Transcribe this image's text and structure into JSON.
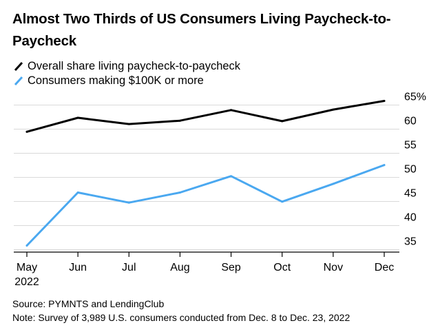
{
  "chart_data": {
    "type": "line",
    "title": "Almost Two Thirds of US Consumers Living Paycheck-to-Paycheck",
    "categories": [
      "May",
      "Jun",
      "Jul",
      "Aug",
      "Sep",
      "Oct",
      "Nov",
      "Dec"
    ],
    "year_label": "2022",
    "series": [
      {
        "name": "Overall share living paycheck-to-paycheck",
        "color": "#000000",
        "values": [
          57.6,
          60.5,
          59.2,
          59.9,
          62.1,
          59.8,
          62.2,
          64.0
        ]
      },
      {
        "name": "Consumers making $100K or more",
        "color": "#4aa8f0",
        "values": [
          34.0,
          45.0,
          42.9,
          45.0,
          48.4,
          43.1,
          46.8,
          50.7
        ]
      }
    ],
    "ylim": [
      33,
      67
    ],
    "yticks": [
      35,
      40,
      45,
      50,
      55,
      60,
      65
    ],
    "ytick_labels": [
      "35",
      "40",
      "45",
      "50",
      "55",
      "60",
      "65%"
    ],
    "grid": true,
    "xlabel": "",
    "ylabel": ""
  },
  "footer": {
    "source": "Source: PYMNTS and LendingClub",
    "note": "Note: Survey of 3,989 U.S. consumers conducted from Dec. 8 to Dec. 23, 2022"
  }
}
